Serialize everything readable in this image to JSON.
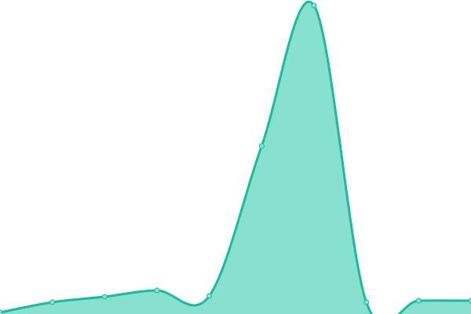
{
  "chart_data": {
    "type": "area",
    "values": [
      2,
      15,
      22,
      30,
      23,
      214,
      393,
      15,
      17,
      17
    ],
    "color": "#1abc9c",
    "fill": "#88e1d0",
    "ylim": [
      0,
      400
    ]
  }
}
